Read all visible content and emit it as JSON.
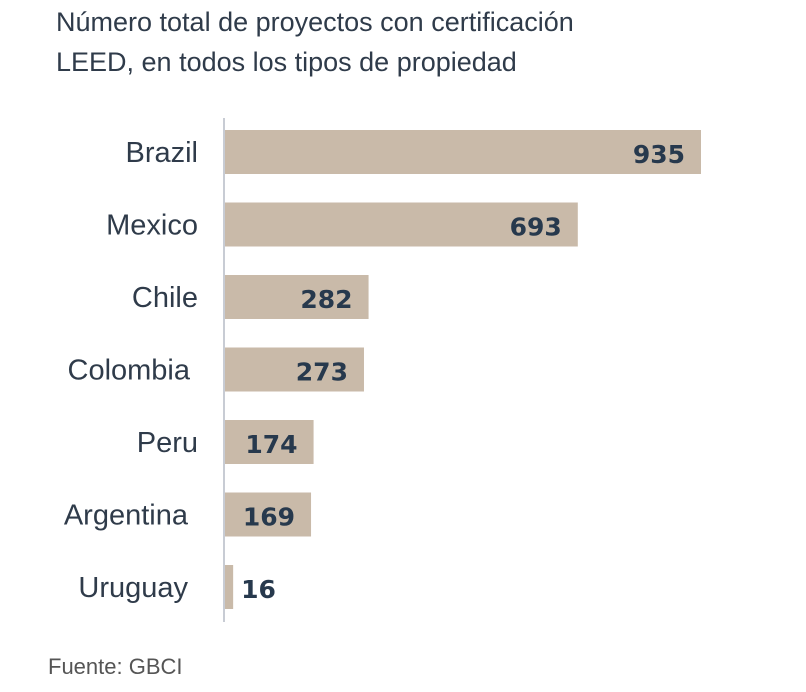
{
  "title": "Número total de proyectos con certificación LEED, en todos los tipos de propiedad",
  "source": "Fuente:  GBCI",
  "colors": {
    "bar": "#c9baa9",
    "axis": "#c8ccd4",
    "text": "#2f3b4a",
    "value_text": "#27394d"
  },
  "chart_data": {
    "type": "bar",
    "orientation": "horizontal",
    "categories": [
      "Brazil",
      "Mexico",
      "Chile",
      "Colombia",
      "Peru",
      "Argentina",
      "Uruguay"
    ],
    "values": [
      935,
      693,
      282,
      273,
      174,
      169,
      16
    ],
    "title": "Número total de proyectos con certificación LEED, en todos los tipos de propiedad",
    "xlabel": "",
    "ylabel": "",
    "grid": false
  }
}
